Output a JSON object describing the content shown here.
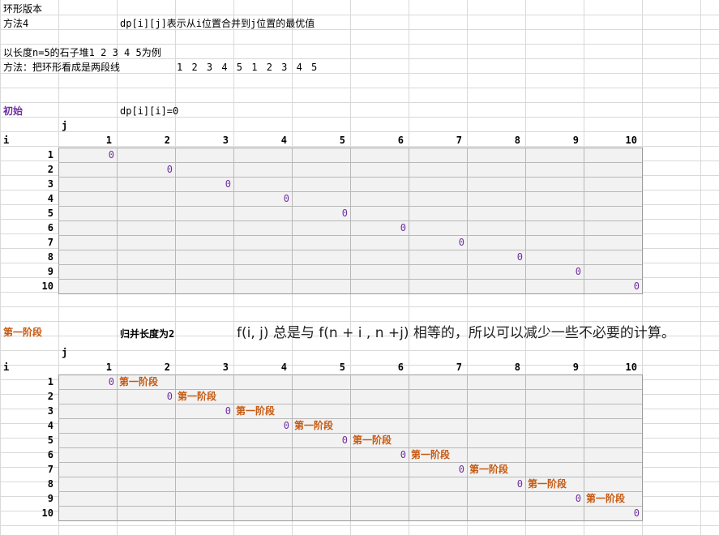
{
  "header": {
    "r1_title": "环形版本",
    "r2_method": "方法4",
    "r2_definition": "dp[i][j]表示从i位置合并到j位置的最优值",
    "r4_example": "以长度n=5的石子堆1 2 3 4 5为例",
    "r5_method": "方法：把环形看成是两段线",
    "r5_sequence": "1 2 3 4 5 1 2 3 4 5"
  },
  "section_init": {
    "label": "初始",
    "formula": "dp[i][i]=0",
    "j_label": "j",
    "i_label": "i",
    "col_headers": [
      "1",
      "2",
      "3",
      "4",
      "5",
      "6",
      "7",
      "8",
      "9",
      "10"
    ],
    "row_headers": [
      "1",
      "2",
      "3",
      "4",
      "5",
      "6",
      "7",
      "8",
      "9",
      "10"
    ],
    "diagonal": [
      "0",
      "0",
      "0",
      "0",
      "0",
      "0",
      "0",
      "0",
      "0",
      "0"
    ]
  },
  "section_stage1": {
    "label": "第一阶段",
    "merge_len": "归并长度为2",
    "note": "f(i, j) 总是与 f(n + i , n +j) 相等的，所以可以减少一些不必要的计算。",
    "j_label": "j",
    "i_label": "i",
    "col_headers": [
      "1",
      "2",
      "3",
      "4",
      "5",
      "6",
      "7",
      "8",
      "9",
      "10"
    ],
    "row_headers": [
      "1",
      "2",
      "3",
      "4",
      "5",
      "6",
      "7",
      "8",
      "9",
      "10"
    ],
    "diagonal": [
      "0",
      "0",
      "0",
      "0",
      "0",
      "0",
      "0",
      "0",
      "0",
      "0"
    ],
    "stage_cells": [
      "第一阶段",
      "第一阶段",
      "第一阶段",
      "第一阶段",
      "第一阶段",
      "第一阶段",
      "第一阶段",
      "第一阶段",
      "第一阶段"
    ]
  },
  "colors": {
    "purple": "#7030a0",
    "orange": "#c65911",
    "grid_fill": "#f2f2f2"
  }
}
